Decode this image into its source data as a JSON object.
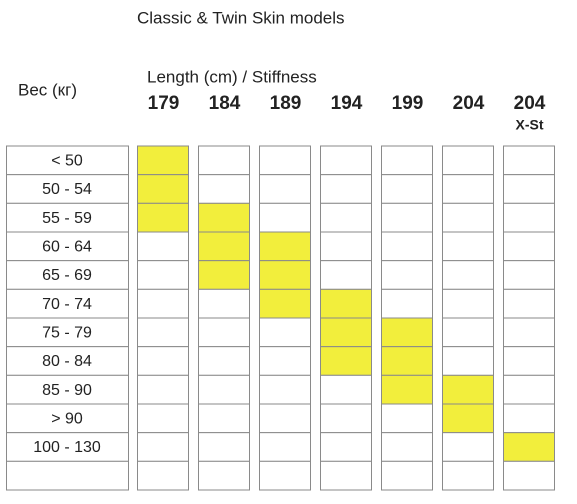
{
  "header": {
    "title": "Classic & Twin Skin models",
    "weight_label": "Вес (кг)",
    "length_label": "Length (cm) / Stiffness"
  },
  "table": {
    "highlight_color": "#f2ee3c",
    "rows": [
      "< 50",
      "50 - 54",
      "55 - 59",
      "60 - 64",
      "65 - 69",
      "70 - 74",
      "75 - 79",
      "80 - 84",
      "85 - 90",
      "> 90",
      "100 - 130",
      null
    ],
    "columns": [
      {
        "label": 179,
        "highlighted": [
          true,
          true,
          true,
          false,
          false,
          false,
          false,
          false,
          false,
          false,
          false,
          false
        ]
      },
      {
        "label": 184,
        "highlighted": [
          false,
          false,
          true,
          true,
          true,
          false,
          false,
          false,
          false,
          false,
          false,
          false
        ]
      },
      {
        "label": 189,
        "highlighted": [
          false,
          false,
          false,
          true,
          true,
          true,
          false,
          false,
          false,
          false,
          false,
          false
        ]
      },
      {
        "label": 194,
        "highlighted": [
          false,
          false,
          false,
          false,
          false,
          true,
          true,
          true,
          false,
          false,
          false,
          false
        ]
      },
      {
        "label": 199,
        "highlighted": [
          false,
          false,
          false,
          false,
          false,
          false,
          true,
          true,
          true,
          false,
          false,
          false
        ]
      },
      {
        "label": 204,
        "highlighted": [
          false,
          false,
          false,
          false,
          false,
          false,
          false,
          false,
          true,
          true,
          false,
          false
        ]
      },
      {
        "label": 204,
        "sublabel": "X-St",
        "highlighted": [
          false,
          false,
          false,
          false,
          false,
          false,
          false,
          false,
          false,
          false,
          true,
          false
        ]
      }
    ]
  }
}
